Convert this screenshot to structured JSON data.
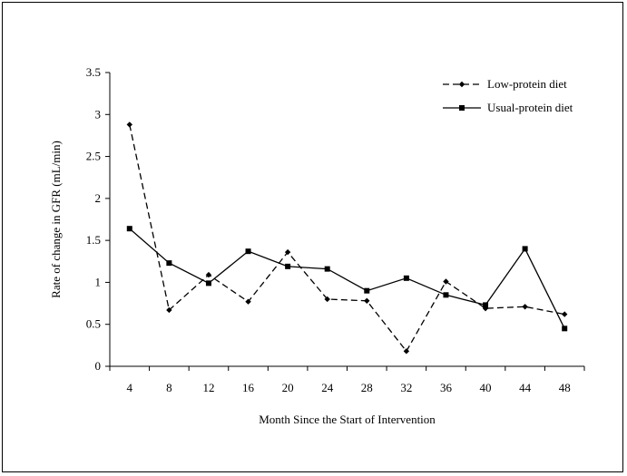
{
  "chart_data": {
    "type": "line",
    "title": "",
    "xlabel": "Month Since the Start of Intervention",
    "ylabel": "Rate of change in GFR (mL/min)",
    "categories": [
      "4",
      "8",
      "12",
      "16",
      "20",
      "24",
      "28",
      "32",
      "36",
      "40",
      "44",
      "48"
    ],
    "x": [
      4,
      8,
      12,
      16,
      20,
      24,
      28,
      32,
      36,
      40,
      44,
      48
    ],
    "ylim": [
      0,
      3.5
    ],
    "yticks": [
      "0",
      "0.5",
      "1",
      "1.5",
      "2",
      "2.5",
      "3",
      "3.5"
    ],
    "ytick_values": [
      0,
      0.5,
      1,
      1.5,
      2,
      2.5,
      3,
      3.5
    ],
    "grid": false,
    "legend_position": "top-right",
    "series": [
      {
        "name": "Low-protein diet",
        "marker": "diamond",
        "line_style": "dashed",
        "color": "#000000",
        "values": [
          2.88,
          0.67,
          1.09,
          0.77,
          1.36,
          0.8,
          0.78,
          0.18,
          1.01,
          0.69,
          0.71,
          0.62
        ]
      },
      {
        "name": "Usual-protein diet",
        "marker": "square",
        "line_style": "solid",
        "color": "#000000",
        "values": [
          1.64,
          1.23,
          0.99,
          1.37,
          1.19,
          1.16,
          0.9,
          1.05,
          0.85,
          0.73,
          1.4,
          0.45
        ]
      }
    ]
  }
}
